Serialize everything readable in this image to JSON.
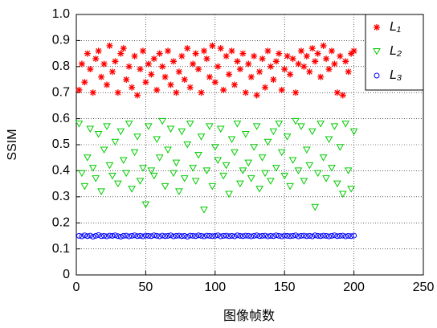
{
  "chart_data": {
    "type": "scatter",
    "xlabel": "图像帧数",
    "ylabel": "SSIM",
    "xlim": [
      0,
      250
    ],
    "ylim": [
      0,
      1
    ],
    "xticks": [
      0,
      50,
      100,
      150,
      200,
      250
    ],
    "yticks": [
      0,
      0.1,
      0.2,
      0.3,
      0.4,
      0.5,
      0.6,
      0.7,
      0.8,
      0.9,
      {
        "value": 1,
        "label": "1.0"
      }
    ],
    "grid": true,
    "legend": "upper right",
    "x": [
      2,
      4,
      6,
      8,
      10,
      12,
      14,
      16,
      18,
      20,
      22,
      24,
      26,
      28,
      30,
      32,
      34,
      36,
      38,
      40,
      42,
      44,
      46,
      48,
      50,
      52,
      54,
      56,
      58,
      60,
      62,
      64,
      66,
      68,
      70,
      72,
      74,
      76,
      78,
      80,
      82,
      84,
      86,
      88,
      90,
      92,
      94,
      96,
      98,
      100,
      102,
      104,
      106,
      108,
      110,
      112,
      114,
      116,
      118,
      120,
      122,
      124,
      126,
      128,
      130,
      132,
      134,
      136,
      138,
      140,
      142,
      144,
      146,
      148,
      150,
      152,
      154,
      156,
      158,
      160,
      162,
      164,
      166,
      168,
      170,
      172,
      174,
      176,
      178,
      180,
      182,
      184,
      186,
      188,
      190,
      192,
      194,
      196,
      198,
      200
    ],
    "series": [
      {
        "name": "L₁",
        "color": "#ff0000",
        "marker": "asterisk",
        "values": [
          0.71,
          0.81,
          0.74,
          0.85,
          0.79,
          0.7,
          0.83,
          0.86,
          0.76,
          0.81,
          0.73,
          0.88,
          0.78,
          0.82,
          0.7,
          0.85,
          0.87,
          0.75,
          0.8,
          0.72,
          0.84,
          0.69,
          0.79,
          0.86,
          0.74,
          0.81,
          0.77,
          0.83,
          0.71,
          0.85,
          0.8,
          0.76,
          0.86,
          0.73,
          0.82,
          0.7,
          0.78,
          0.84,
          0.75,
          0.87,
          0.72,
          0.81,
          0.85,
          0.79,
          0.7,
          0.86,
          0.83,
          0.76,
          0.88,
          0.74,
          0.8,
          0.87,
          0.71,
          0.84,
          0.77,
          0.86,
          0.73,
          0.82,
          0.79,
          0.85,
          0.7,
          0.81,
          0.76,
          0.84,
          0.69,
          0.78,
          0.83,
          0.72,
          0.86,
          0.8,
          0.75,
          0.82,
          0.85,
          0.71,
          0.79,
          0.84,
          0.77,
          0.83,
          0.7,
          0.81,
          0.86,
          0.8,
          0.84,
          0.78,
          0.87,
          0.82,
          0.85,
          0.76,
          0.88,
          0.83,
          0.79,
          0.86,
          0.81,
          0.7,
          0.84,
          0.69,
          0.82,
          0.78,
          0.85,
          0.86
        ]
      },
      {
        "name": "L₂",
        "color": "#00cc00",
        "marker": "triangle-down",
        "values": [
          0.58,
          0.39,
          0.34,
          0.45,
          0.56,
          0.41,
          0.37,
          0.54,
          0.32,
          0.48,
          0.57,
          0.42,
          0.38,
          0.51,
          0.35,
          0.55,
          0.44,
          0.39,
          0.58,
          0.33,
          0.47,
          0.53,
          0.36,
          0.41,
          0.27,
          0.57,
          0.4,
          0.38,
          0.52,
          0.45,
          0.59,
          0.34,
          0.48,
          0.56,
          0.39,
          0.43,
          0.32,
          0.55,
          0.37,
          0.5,
          0.58,
          0.41,
          0.36,
          0.46,
          0.53,
          0.25,
          0.4,
          0.57,
          0.34,
          0.49,
          0.44,
          0.56,
          0.38,
          0.42,
          0.31,
          0.52,
          0.47,
          0.58,
          0.35,
          0.4,
          0.54,
          0.43,
          0.37,
          0.49,
          0.57,
          0.33,
          0.45,
          0.39,
          0.51,
          0.36,
          0.55,
          0.41,
          0.58,
          0.47,
          0.38,
          0.53,
          0.34,
          0.44,
          0.59,
          0.4,
          0.57,
          0.36,
          0.48,
          0.42,
          0.55,
          0.26,
          0.39,
          0.58,
          0.45,
          0.37,
          0.52,
          0.41,
          0.57,
          0.35,
          0.49,
          0.31,
          0.58,
          0.4,
          0.33,
          0.55
        ]
      },
      {
        "name": "L₃",
        "color": "#0000ff",
        "marker": "circle",
        "values": [
          0.15,
          0.148,
          0.152,
          0.149,
          0.151,
          0.147,
          0.15,
          0.153,
          0.149,
          0.15,
          0.148,
          0.151,
          0.15,
          0.152,
          0.149,
          0.147,
          0.15,
          0.151,
          0.148,
          0.15,
          0.152,
          0.149,
          0.15,
          0.148,
          0.151,
          0.15,
          0.149,
          0.152,
          0.15,
          0.148,
          0.151,
          0.149,
          0.15,
          0.152,
          0.148,
          0.15,
          0.151,
          0.149,
          0.15,
          0.147,
          0.151,
          0.15,
          0.149,
          0.152,
          0.15,
          0.148,
          0.151,
          0.15,
          0.149,
          0.15,
          0.152,
          0.148,
          0.15,
          0.151,
          0.149,
          0.15,
          0.148,
          0.152,
          0.15,
          0.149,
          0.151,
          0.15,
          0.148,
          0.15,
          0.152,
          0.149,
          0.15,
          0.151,
          0.148,
          0.15,
          0.149,
          0.152,
          0.15,
          0.148,
          0.151,
          0.15,
          0.149,
          0.15,
          0.152,
          0.148,
          0.15,
          0.151,
          0.149,
          0.15,
          0.148,
          0.152,
          0.15,
          0.149,
          0.151,
          0.15,
          0.148,
          0.15,
          0.152,
          0.149,
          0.15,
          0.151,
          0.148,
          0.15,
          0.149,
          0.151
        ]
      }
    ]
  }
}
